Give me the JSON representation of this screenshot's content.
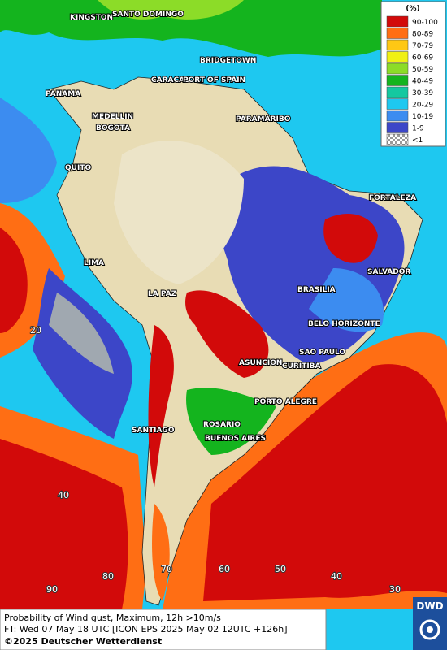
{
  "legend": {
    "title": "(%)",
    "items": [
      {
        "label": "90-100",
        "color": "#d20a0a"
      },
      {
        "label": "80-89",
        "color": "#ff6e14"
      },
      {
        "label": "70-79",
        "color": "#ffc814"
      },
      {
        "label": "60-69",
        "color": "#f0f014"
      },
      {
        "label": "50-59",
        "color": "#8cdc28"
      },
      {
        "label": "40-49",
        "color": "#14b41e"
      },
      {
        "label": "30-39",
        "color": "#14c8a0"
      },
      {
        "label": "20-29",
        "color": "#1ec8f0"
      },
      {
        "label": "10-19",
        "color": "#3c8cf0"
      },
      {
        "label": "1-9",
        "color": "#3c46c8"
      },
      {
        "label": "<1",
        "color": "#b4b4b4"
      }
    ]
  },
  "cities": [
    "KINGSTON",
    "SANTO DOMINGO",
    "BRIDGETOWN",
    "CARACAS",
    "PORT OF SPAIN",
    "PANAMA",
    "MEDELLIN",
    "BOGOTA",
    "PARAMARIBO",
    "QUITO",
    "FORTALEZA",
    "LIMA",
    "SALVADOR",
    "LA PAZ",
    "BRASILIA",
    "BELO HORIZONTE",
    "ASUNCION",
    "SAO PAULO",
    "CURITIBA",
    "PORTO ALEGRE",
    "ROSARIO",
    "SANTIAGO",
    "BUENOS AIRES"
  ],
  "grid_labels": [
    "20",
    "40",
    "90",
    "80",
    "70",
    "60",
    "50",
    "40",
    "30"
  ],
  "footer": {
    "line1": "Probability of Wind gust, Maximum, 12h >10m/s",
    "line2": "FT: Wed 07 May 18 UTC [ICON EPS 2025 May 02 12UTC +126h]",
    "line3": "©2025 Deutscher Wetterdienst"
  },
  "logo": "DWD"
}
